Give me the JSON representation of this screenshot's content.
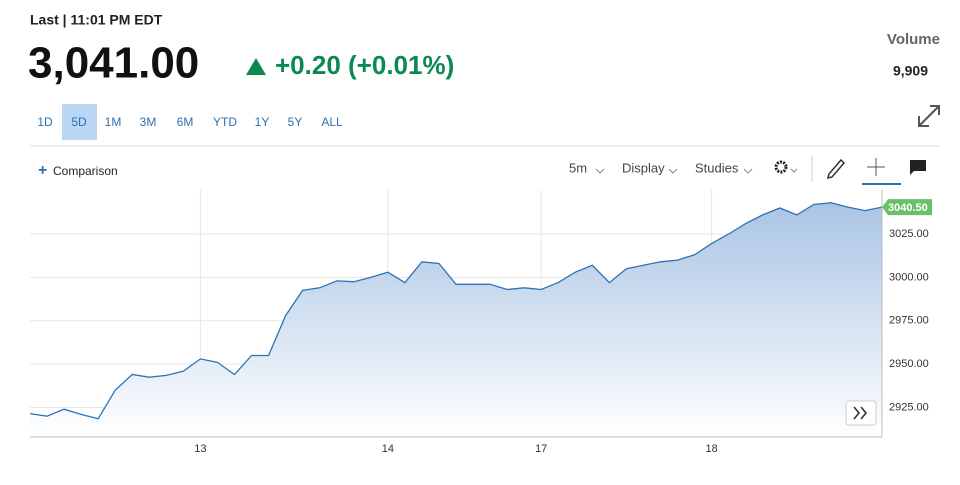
{
  "header": {
    "last": "Last | 11:01 PM EDT",
    "price": "3,041.00",
    "change": "+0.20 (+0.01%)",
    "volume_label": "Volume",
    "volume": "9,909"
  },
  "ranges": [
    "1D",
    "5D",
    "1M",
    "3M",
    "6M",
    "YTD",
    "1Y",
    "5Y",
    "ALL"
  ],
  "selected_range": "5D",
  "toolbar": {
    "comparison": "Comparison",
    "interval": "5m",
    "display": "Display",
    "studies": "Studies"
  },
  "chart_data": {
    "type": "area",
    "color": "#2e73b5",
    "fill": "#a9c4e4",
    "categories": [
      "",
      null,
      null,
      null,
      null,
      null,
      null,
      null,
      null,
      null,
      "13",
      null,
      null,
      null,
      null,
      null,
      null,
      null,
      null,
      null,
      null,
      "14",
      null,
      null,
      null,
      null,
      null,
      null,
      null,
      null,
      "17",
      null,
      null,
      null,
      null,
      null,
      null,
      null,
      null,
      null,
      "18",
      null,
      null,
      null,
      null,
      null,
      null,
      null,
      null,
      null,
      null
    ],
    "values": [
      2921.5,
      2920,
      2924,
      2921,
      2918.5,
      2935,
      2944,
      2942.5,
      2943.5,
      2946,
      2953,
      2951,
      2944,
      2955,
      2955,
      2978,
      2992.5,
      2994,
      2998,
      2997.5,
      3000,
      3003,
      2997,
      3009,
      3008,
      2996,
      2996,
      2996,
      2993,
      2994,
      2993,
      2997,
      3003,
      3007,
      2997,
      3005,
      3007,
      3009,
      3010,
      3013,
      3019.5,
      3025,
      3031,
      3036,
      3040,
      3036,
      3042,
      3043,
      3040.5,
      3038.5,
      3040.5
    ],
    "ylim": [
      2908,
      3047.5
    ],
    "yticks": [
      {
        "value": 2925,
        "label": "2925.00"
      },
      {
        "value": 2950,
        "label": "2950.00"
      },
      {
        "value": 2975,
        "label": "2975.00"
      },
      {
        "value": 3000,
        "label": "3000.00"
      },
      {
        "value": 3025,
        "label": "3025.00"
      }
    ],
    "current_price": {
      "value": 3040.5,
      "label": "3040.50"
    },
    "grid": true
  }
}
